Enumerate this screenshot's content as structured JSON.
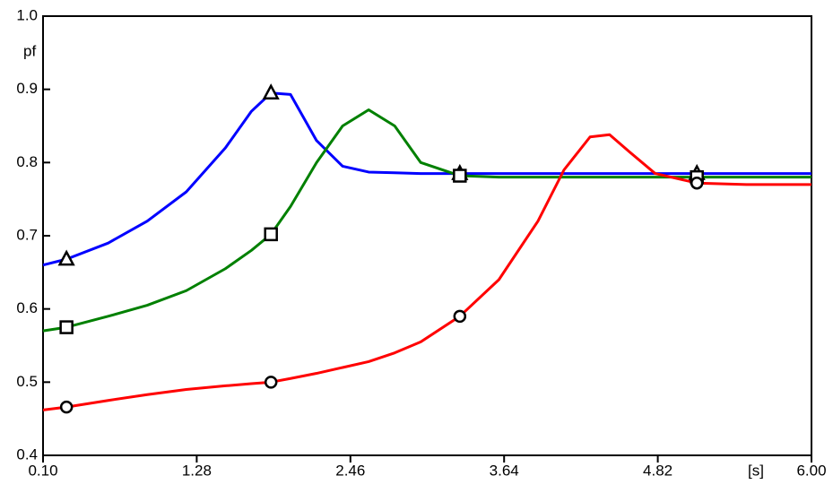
{
  "chart_data": {
    "type": "line",
    "xlabel": "[s]",
    "ylabel": "pf",
    "x": [
      0.1,
      0.28,
      0.6,
      0.9,
      1.2,
      1.5,
      1.7,
      1.85,
      2.0,
      2.2,
      2.4,
      2.6,
      2.8,
      3.0,
      3.3,
      3.6,
      3.9,
      4.1,
      4.3,
      4.45,
      4.6,
      4.8,
      5.12,
      5.5,
      6.0
    ],
    "marker_x": [
      0.28,
      1.85,
      3.3,
      5.12
    ],
    "series": [
      {
        "color": "#0000ff",
        "marker": "triangle",
        "values": [
          0.66,
          0.668,
          0.69,
          0.72,
          0.76,
          0.82,
          0.87,
          0.895,
          0.893,
          0.83,
          0.795,
          0.787,
          0.786,
          0.785,
          0.785,
          0.785,
          0.785,
          0.785,
          0.785,
          0.785,
          0.785,
          0.785,
          0.785,
          0.785,
          0.785
        ]
      },
      {
        "color": "#008000",
        "marker": "square",
        "values": [
          0.57,
          0.575,
          0.59,
          0.605,
          0.625,
          0.655,
          0.68,
          0.702,
          0.74,
          0.8,
          0.85,
          0.872,
          0.85,
          0.8,
          0.782,
          0.78,
          0.78,
          0.78,
          0.78,
          0.78,
          0.78,
          0.78,
          0.78,
          0.78,
          0.78
        ]
      },
      {
        "color": "#ff0000",
        "marker": "circle",
        "values": [
          0.462,
          0.466,
          0.475,
          0.483,
          0.49,
          0.495,
          0.498,
          0.5,
          0.505,
          0.512,
          0.52,
          0.528,
          0.54,
          0.555,
          0.59,
          0.64,
          0.72,
          0.79,
          0.835,
          0.838,
          0.815,
          0.785,
          0.772,
          0.77,
          0.77
        ]
      }
    ],
    "xlim": [
      0.1,
      6.0
    ],
    "xticks": [
      {
        "value": 0.1,
        "label": "0.10"
      },
      1.28,
      2.46,
      3.64,
      4.82,
      {
        "value": 6.0,
        "label": "6.00"
      }
    ],
    "ylim": [
      0.4,
      1.0
    ],
    "yticks": [
      0.4,
      0.5,
      0.6,
      0.7,
      0.8,
      0.9,
      {
        "value": 1.0,
        "label": "1.0"
      }
    ]
  }
}
